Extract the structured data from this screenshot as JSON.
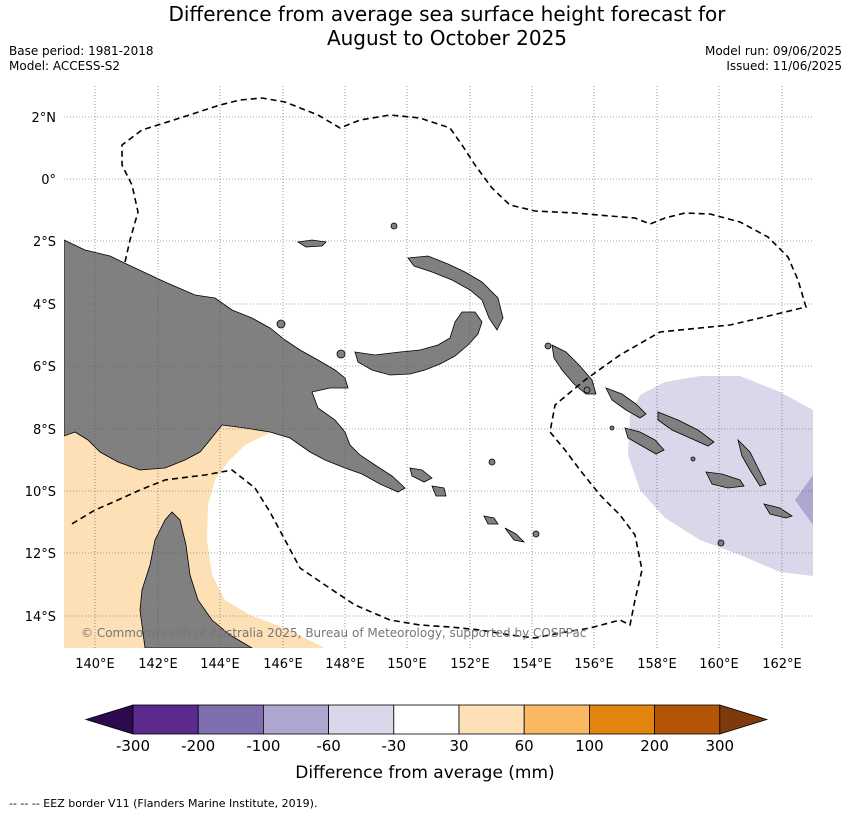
{
  "title_line1": "Difference from average sea surface height forecast for",
  "title_line2": "August to October 2025",
  "base_period": "Base period: 1981-2018",
  "model": "Model: ACCESS-S2",
  "model_run": "Model run: 09/06/2025",
  "issued": "Issued: 11/06/2025",
  "latitude_labels": [
    "2°N",
    "0°",
    "2°S",
    "4°S",
    "6°S",
    "8°S",
    "10°S",
    "12°S",
    "14°S"
  ],
  "longitude_labels": [
    "140°E",
    "142°E",
    "144°E",
    "146°E",
    "148°E",
    "150°E",
    "152°E",
    "154°E",
    "156°E",
    "158°E",
    "160°E",
    "162°E"
  ],
  "copyright": "© Commonwealth of Australia 2025, Bureau of Meteorology, supported by COSPPac",
  "colorbar": {
    "title": "Difference from average (mm)",
    "tick_labels": [
      "-300",
      "-200",
      "-100",
      "-60",
      "-30",
      "30",
      "60",
      "100",
      "200",
      "300"
    ],
    "colors": [
      "#2d0a4e",
      "#5b2a8c",
      "#7f6fae",
      "#aea7cf",
      "#d8d8ea",
      "#ffffff",
      "#fde0b6",
      "#fab863",
      "#e3840f",
      "#b45506",
      "#7e3a0b"
    ]
  },
  "footer": "--  --  -- EEZ border V11 (Flanders Marine Institute, 2019).",
  "map_colors": {
    "land": "#808080",
    "positive_anomaly": "#fde0b6",
    "negative_anomaly": "#d8d8ea",
    "strong_negative": "#aea7cf"
  }
}
